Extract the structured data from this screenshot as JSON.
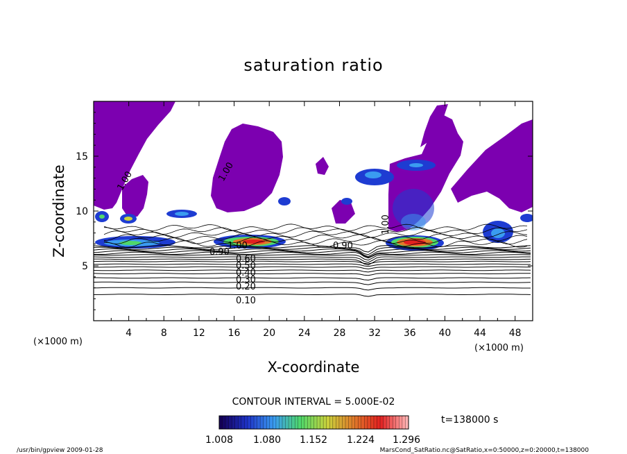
{
  "chart_data": {
    "type": "heatmap",
    "title": "saturation ratio",
    "xlabel": "X-coordinate",
    "ylabel": "Z-coordinate",
    "x_unit": "(×1000 m)",
    "z_unit": "(×1000 m)",
    "xlim": [
      0,
      50
    ],
    "ylim": [
      0,
      20
    ],
    "x_ticks": [
      4,
      8,
      12,
      16,
      20,
      24,
      28,
      32,
      36,
      40,
      44,
      48
    ],
    "y_ticks": [
      5,
      10,
      15
    ],
    "contour_interval_text": "CONTOUR INTERVAL = 5.000E-02",
    "contour_labels": [
      "1.00",
      "1.00",
      "1.00",
      "1.00",
      "0.90",
      "0.90",
      "0.60",
      "0.50",
      "0.40",
      "0.30",
      "0.20",
      "0.10"
    ],
    "colorbar_ticks": [
      "1.008",
      "1.080",
      "1.152",
      "1.224",
      "1.296"
    ],
    "colorbar_colors": [
      "#140057",
      "#1e33c8",
      "#3a9cf0",
      "#4fd86a",
      "#c9d23c",
      "#e07a2a",
      "#e22020",
      "#ffb3b3"
    ],
    "time_label": "t=138000 s",
    "footer_left": "/usr/bin/gpview  2009-01-28",
    "footer_right": "MarsCond_SatRatio.nc@SatRatio,x=0:50000,z=0:20000,t=138000",
    "colors": {
      "saturated": "#7c00b0",
      "hot": "#e81e1e",
      "warm": "#f5c040",
      "cool": "#28c85a",
      "cold": "#1e3cd2"
    }
  }
}
